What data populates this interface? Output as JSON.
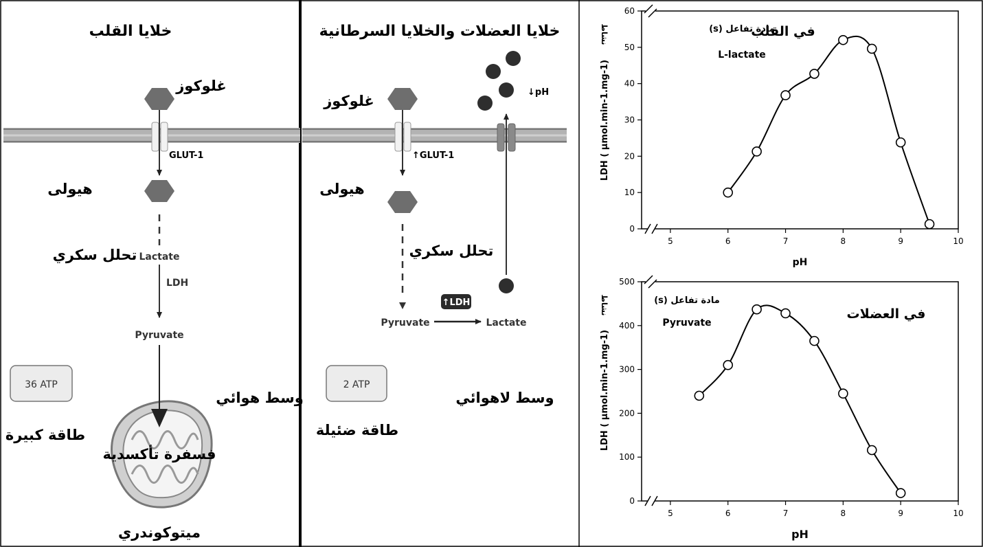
{
  "heart_panel": {
    "title": "خلايا القلب",
    "glucose": "غلوكوز",
    "transporter": "GLUT-1",
    "cytoplasm": "هيولى",
    "glycolysis": "تحلل سكري",
    "lactate": "Lactate",
    "enzyme": "LDH",
    "pyruvate": "Pyruvate",
    "atp": "36 ATP",
    "energy": "طاقة كبيرة",
    "medium": "وسط هوائي",
    "oxphos": "فسفرة تأكسدية",
    "mitochondrion": "ميتوكوندري"
  },
  "muscle_panel": {
    "title": "خلايا العضلات والخلايا السرطانية",
    "glucose": "غلوكوز",
    "transporter": "↑GLUT-1",
    "cytoplasm": "هيولى",
    "glycolysis": "تحلل سكري",
    "pyruvate": "Pyruvate",
    "enzyme": "↑LDH",
    "lactate": "Lactate",
    "ph": "↓pH",
    "atp": "2 ATP",
    "energy": "طاقة ضئيلة",
    "medium": "وسط لاهوائي"
  },
  "colors": {
    "membrane": "#a8a8a8",
    "hexagon": "#6e6e6e",
    "dark_circle": "#2e2e2e",
    "box_fill": "#ececec"
  },
  "chart_data": [
    {
      "type": "line",
      "title": "في القلب",
      "substrate_label": "مادة تفاعل (s)",
      "substrate": "L-lactate",
      "xlabel": "pH",
      "ylabel_prefix": "نشاط",
      "ylabel": "LDH ( µmol.min-1.mg-1)",
      "xlim": [
        4.5,
        10
      ],
      "ylim": [
        0,
        60
      ],
      "xticks": [
        5,
        6,
        7,
        8,
        9,
        10
      ],
      "yticks": [
        0,
        10,
        20,
        30,
        40,
        50,
        60
      ],
      "x": [
        6,
        6.5,
        7,
        7.5,
        8,
        8.5,
        9,
        9.5
      ],
      "y": [
        10,
        21.3,
        36.8,
        42.7,
        52,
        49.6,
        23.8,
        1.3
      ]
    },
    {
      "type": "line",
      "title": "في العضلات",
      "substrate_label": "مادة تفاعل (s)",
      "substrate": "Pyruvate",
      "xlabel": "pH",
      "ylabel_prefix": "نشاط",
      "ylabel": "LDH ( µmol.min-1.mg-1)",
      "xlim": [
        4.5,
        10
      ],
      "ylim": [
        0,
        500
      ],
      "xticks": [
        5,
        6,
        7,
        8,
        9,
        10
      ],
      "yticks": [
        0,
        100,
        200,
        300,
        400,
        500
      ],
      "x": [
        5.5,
        6,
        6.5,
        7,
        7.5,
        8,
        8.5,
        9
      ],
      "y": [
        240,
        310,
        437,
        428,
        365,
        245,
        116,
        18
      ]
    }
  ]
}
